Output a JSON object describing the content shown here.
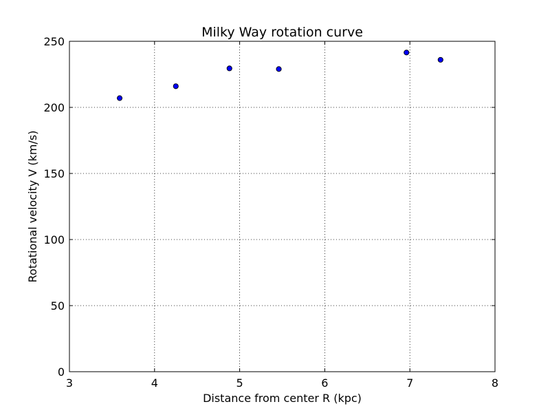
{
  "chart_data": {
    "type": "scatter",
    "title": "Milky Way rotation curve",
    "xlabel": "Distance from center R (kpc)",
    "ylabel": "Rotational velocity V (km/s)",
    "xlim": [
      3,
      8
    ],
    "ylim": [
      0,
      250
    ],
    "xticks": [
      3,
      4,
      5,
      6,
      7,
      8
    ],
    "yticks": [
      0,
      50,
      100,
      150,
      200,
      250
    ],
    "grid": true,
    "legend": "none",
    "marker_color": "#0000ff",
    "marker_edge_color": "#000000",
    "points": [
      {
        "x": 3.59,
        "y": 207
      },
      {
        "x": 4.25,
        "y": 216
      },
      {
        "x": 4.88,
        "y": 229.5
      },
      {
        "x": 5.46,
        "y": 229
      },
      {
        "x": 6.96,
        "y": 241.5
      },
      {
        "x": 7.36,
        "y": 236
      }
    ]
  }
}
